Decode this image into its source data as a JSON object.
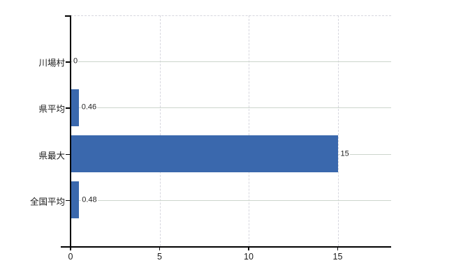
{
  "chart_data": {
    "type": "bar",
    "orientation": "horizontal",
    "title": "",
    "xlabel": "",
    "ylabel": "",
    "categories": [
      "川場村",
      "県平均",
      "県最大",
      "全国平均"
    ],
    "values": [
      0,
      0.46,
      15,
      0.48
    ],
    "value_labels": [
      "0",
      "0.46",
      "15",
      "0.48"
    ],
    "x_ticks": [
      0,
      5,
      10,
      15
    ],
    "x_tick_labels": [
      "0",
      "5",
      "10",
      "15"
    ],
    "xlim": [
      0,
      18
    ],
    "grid": {
      "horizontal": "solid",
      "vertical": "dashed",
      "top_border": "dashed"
    },
    "legend": null,
    "colors": {
      "bar": "#3a68ad",
      "h_gridline": "#ccd5cc",
      "v_gridline": "#d6d6de",
      "axis": "#000000",
      "text": "#1a1a1a",
      "background": "#ffffff"
    }
  }
}
